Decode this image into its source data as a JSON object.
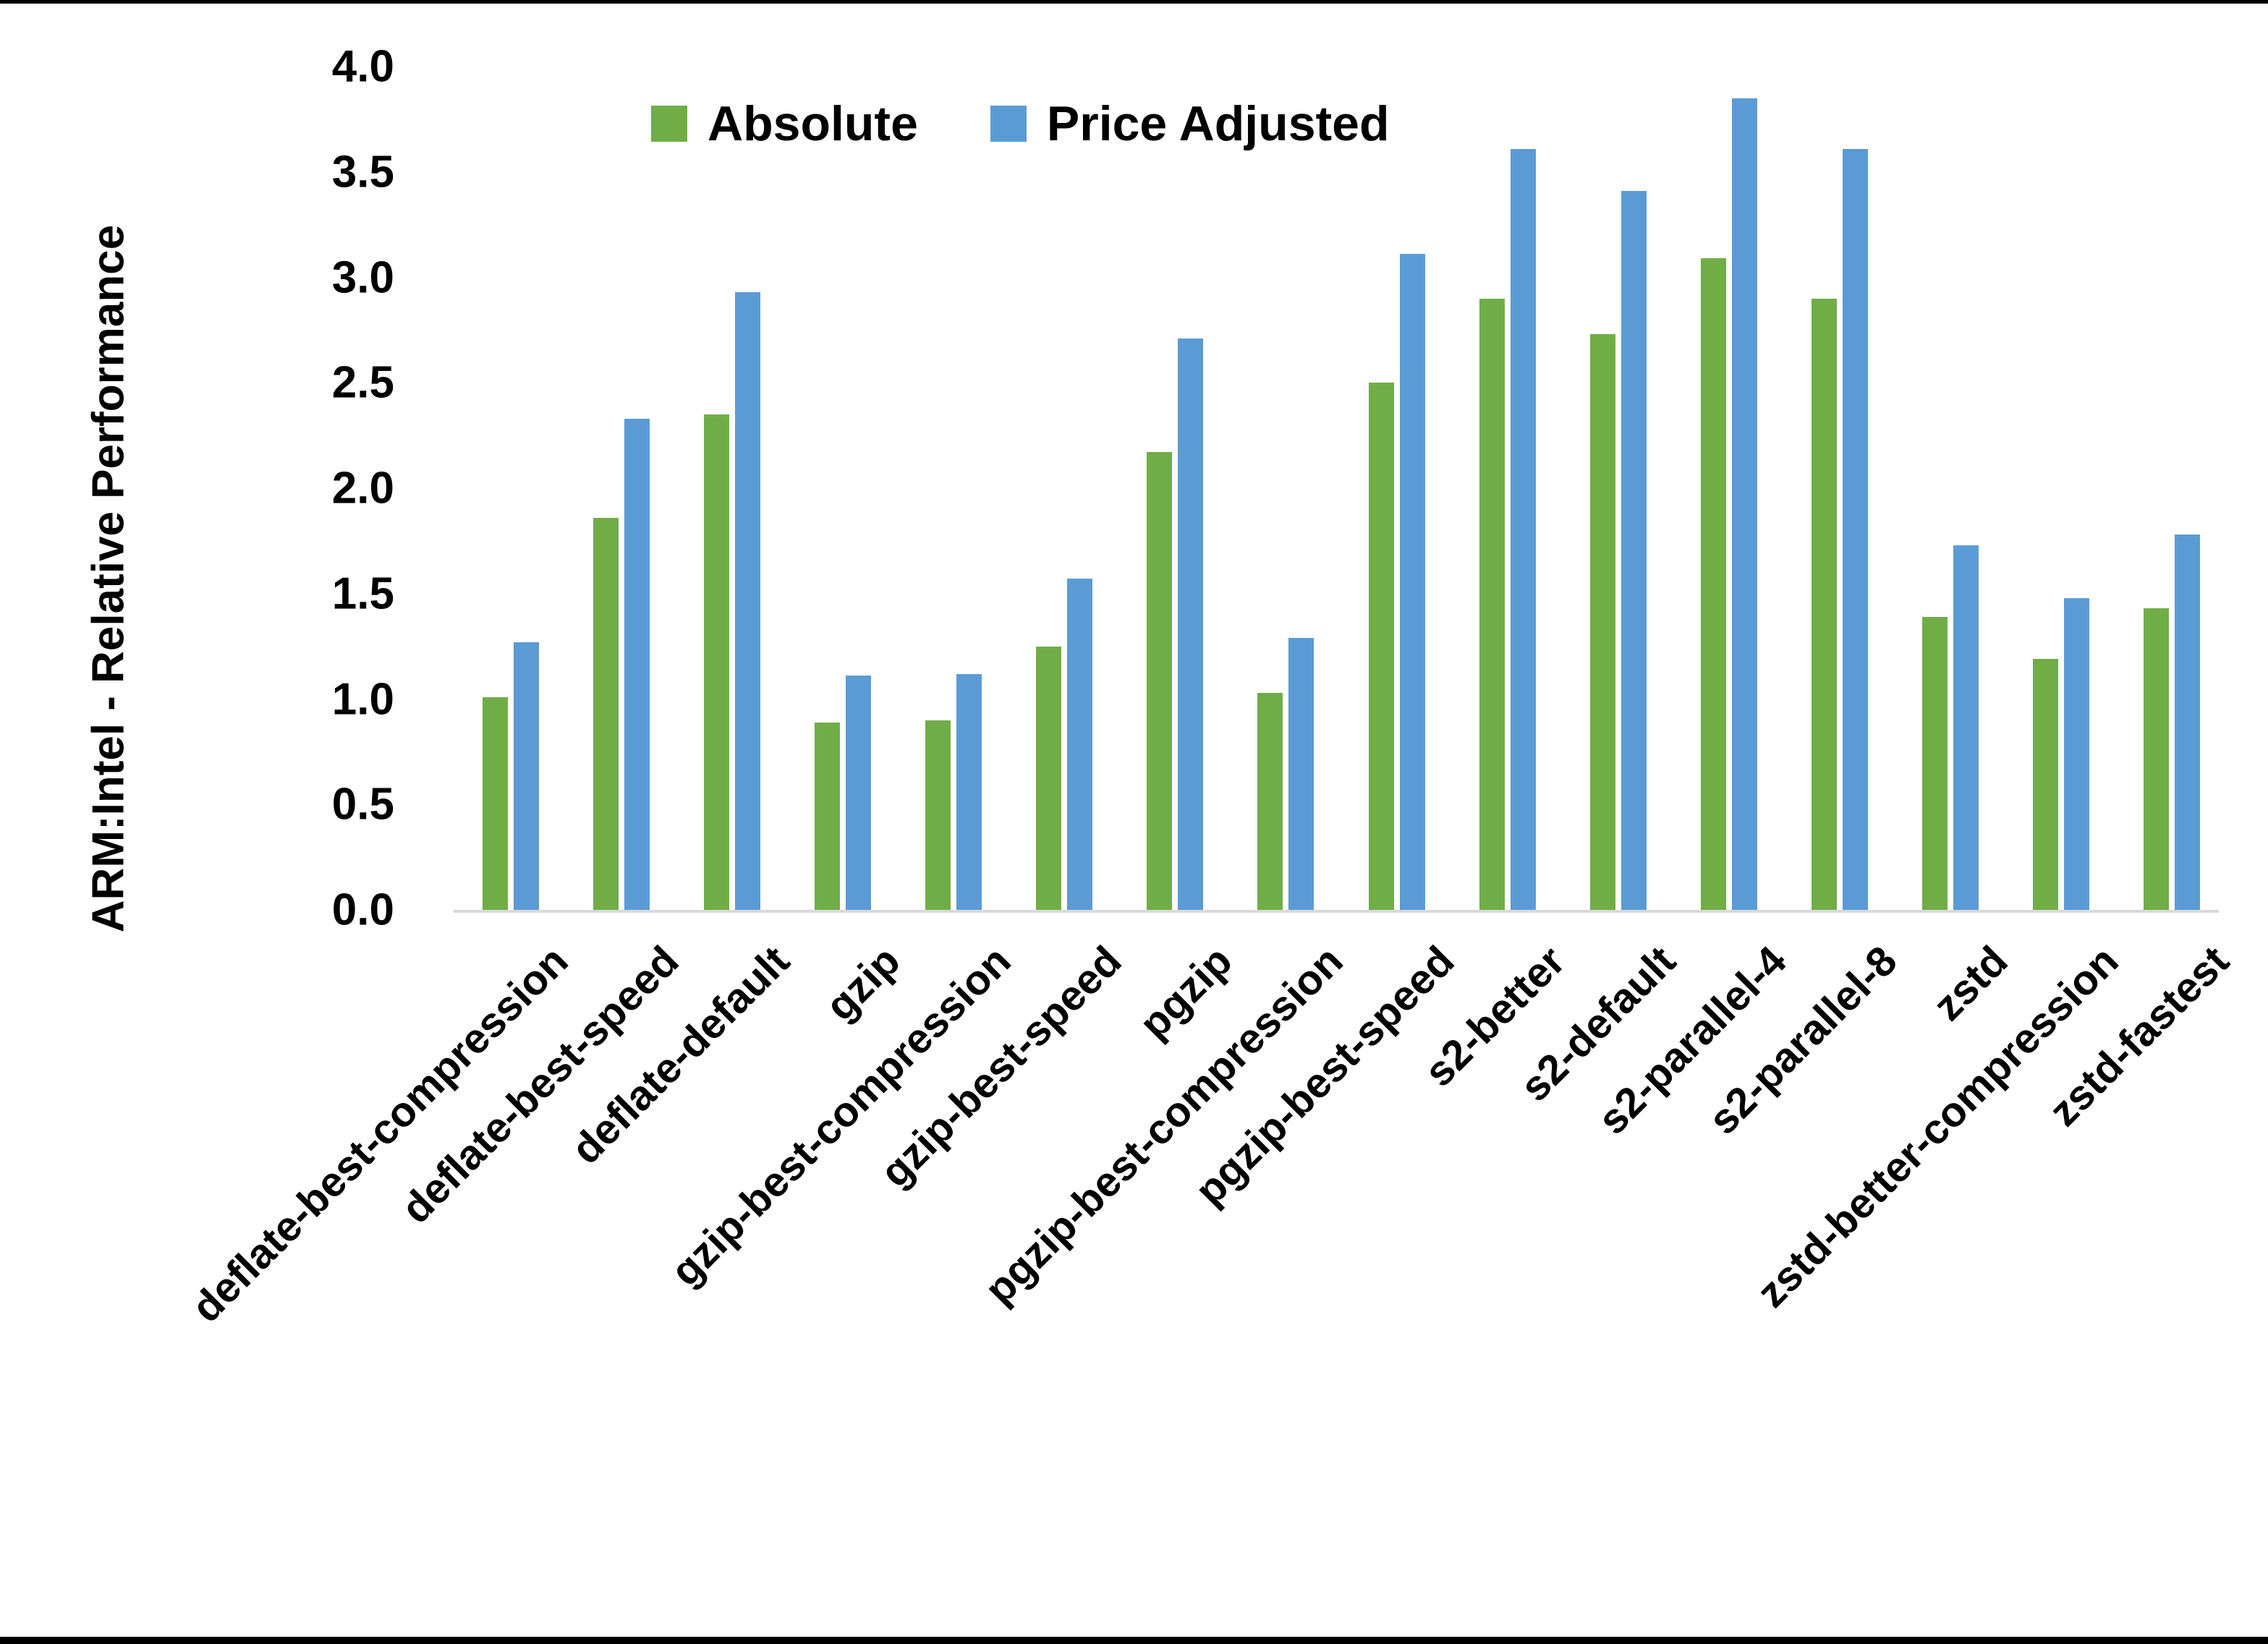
{
  "chart_data": {
    "type": "bar",
    "title": "",
    "xlabel": "",
    "ylabel": "ARM:Intel - Relative Performance",
    "categories": [
      "deflate-best-compression",
      "deflate-best-speed",
      "deflate-default",
      "gzip",
      "gzip-best-compression",
      "gzip-best-speed",
      "pgzip",
      "pgzip-best-compression",
      "pgzip-best-speed",
      "s2-better",
      "s2-default",
      "s2-parallel-4",
      "s2-parallel-8",
      "zstd",
      "zstd-better-compression",
      "zstd-fastest"
    ],
    "series": [
      {
        "name": "Absolute",
        "color": "#70AD47",
        "values": [
          1.01,
          1.86,
          2.35,
          0.89,
          0.9,
          1.25,
          2.17,
          1.03,
          2.5,
          2.9,
          2.73,
          3.09,
          2.9,
          1.39,
          1.19,
          1.43
        ]
      },
      {
        "name": "Price Adjusted",
        "color": "#5B9BD5",
        "values": [
          1.27,
          2.33,
          2.93,
          1.11,
          1.12,
          1.57,
          2.71,
          1.29,
          3.11,
          3.61,
          3.41,
          3.85,
          3.61,
          1.73,
          1.48,
          1.78
        ]
      }
    ],
    "ylim": [
      0.0,
      4.0
    ],
    "ytick_step": 0.5,
    "ytick_labels": [
      "0.0",
      "0.5",
      "1.0",
      "1.5",
      "2.0",
      "2.5",
      "3.0",
      "3.5",
      "4.0"
    ],
    "grid": false,
    "legend_position": "top-inside",
    "axis_line_color": "#D9D9D9",
    "background_color": "#FFFFFF",
    "frame_border_color": "#000000"
  }
}
